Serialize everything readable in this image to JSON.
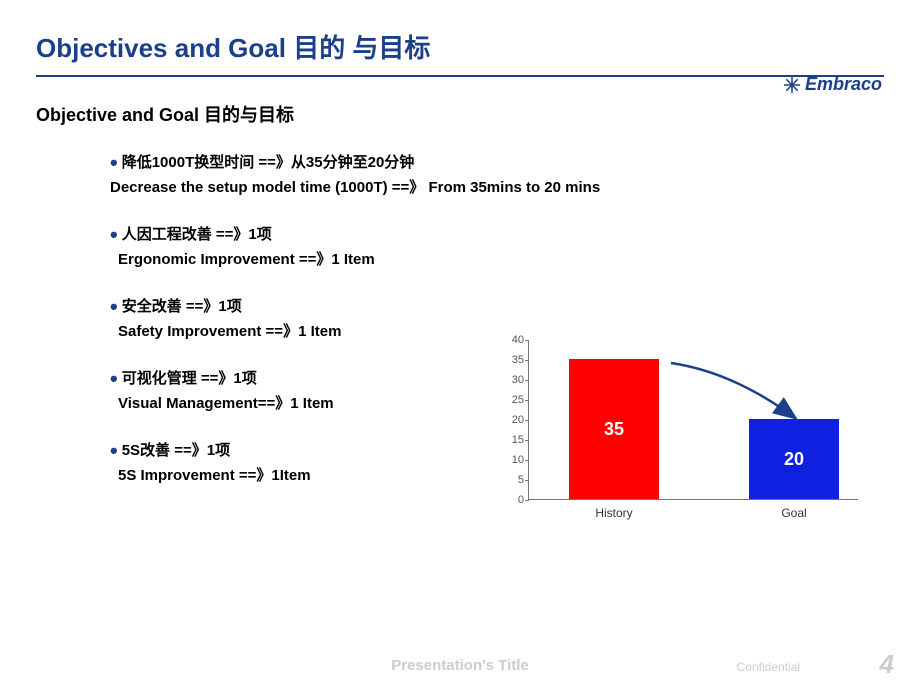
{
  "title": "Objectives and Goal 目的 与目标",
  "brand": "Embraco",
  "subtitle": "Objective and Goal 目的与目标",
  "bullets": [
    {
      "cn": "降低1000T换型时间 ==》从35分钟至20分钟",
      "en": "Decrease the setup model  time (1000T) ==》   From 35mins to 20 mins"
    },
    {
      "cn": "人因工程改善 ==》1项",
      "en": "Ergonomic Improvement ==》1 Item"
    },
    {
      "cn": "安全改善 ==》1项",
      "en": "Safety Improvement ==》1 Item"
    },
    {
      "cn": "可视化管理 ==》1项",
      "en": "Visual Management==》1 Item"
    },
    {
      "cn": "5S改善 ==》1项",
      "en": "5S Improvement  ==》1Item"
    }
  ],
  "chart": {
    "type": "bar",
    "categories": [
      "History",
      "Goal"
    ],
    "values": [
      35,
      20
    ],
    "bar_colors": [
      "#ff0000",
      "#1020e0"
    ],
    "value_labels": [
      "35",
      "20"
    ],
    "ylim_max": 40,
    "ytick_step": 5,
    "arrow_color": "#1b3f8b"
  },
  "footer": {
    "title": "Presentation's Title",
    "confidential": "Confidential",
    "page": "4"
  },
  "colors": {
    "primary": "#1b3f8b"
  }
}
